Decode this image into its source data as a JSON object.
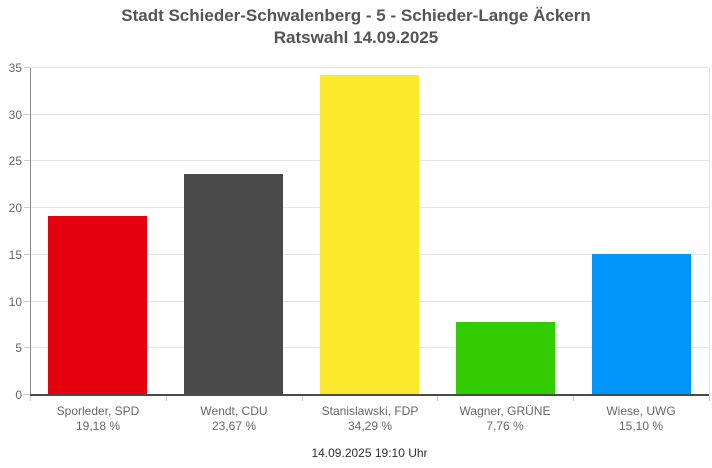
{
  "title": {
    "line1": "Stadt Schieder-Schwalenberg - 5 - Schieder-Lange Äckern",
    "line2": "Ratswahl 14.09.2025"
  },
  "footer": {
    "timestamp": "14.09.2025 19:10 Uhr"
  },
  "chart_data": {
    "type": "bar",
    "title": "Stadt Schieder-Schwalenberg - 5 - Schieder-Lange Äckern Ratswahl 14.09.2025",
    "categories": [
      "Sporleder, SPD",
      "Wendt, CDU",
      "Stanislawski, FDP",
      "Wagner, GRÜNE",
      "Wiese, UWG"
    ],
    "category_sublabels": [
      "19,18 %",
      "23,67 %",
      "34,29 %",
      "7,76 %",
      "15,10 %"
    ],
    "values": [
      19.18,
      23.67,
      34.29,
      7.76,
      15.1
    ],
    "bar_colors": [
      "#e3000f",
      "#4a4a4a",
      "#fae92d",
      "#33cc00",
      "#0095f8"
    ],
    "xlabel": "",
    "ylabel": "",
    "ylim": [
      0,
      35
    ],
    "yticks": [
      0,
      5,
      10,
      15,
      20,
      25,
      30,
      35
    ],
    "grid": true,
    "legend": "none"
  },
  "colors": {
    "title_text": "#545454",
    "axis_label_text": "#666666",
    "footer_text": "#333333",
    "gridline": "#e6e6e6",
    "axis_tick": "#cccccc",
    "y_axis_line": "#8c8c8c",
    "x_axis_line": "#4a4a4a",
    "background": "#ffffff"
  }
}
